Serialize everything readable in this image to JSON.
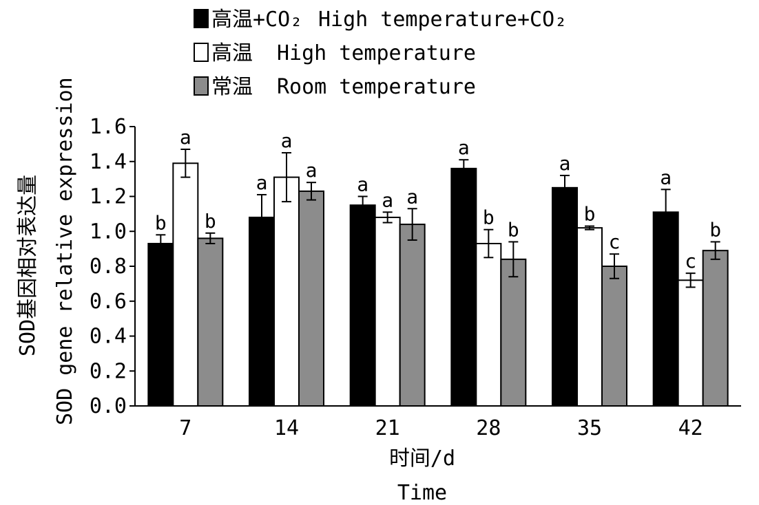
{
  "chart_data": {
    "type": "bar",
    "ylabel_cn": "SOD基因相对表达量",
    "ylabel_en": "SOD gene relative expression",
    "xlabel_cn": "时间/d",
    "xlabel_en": "Time",
    "ylim": [
      0,
      1.6
    ],
    "yticks": [
      "0.0",
      "0.2",
      "0.4",
      "0.6",
      "0.8",
      "1.0",
      "1.2",
      "1.4",
      "1.6"
    ],
    "categories": [
      "7",
      "14",
      "21",
      "28",
      "35",
      "42"
    ],
    "legend": [
      {
        "cn": "高温+CO₂",
        "en": "High temperature+CO₂"
      },
      {
        "cn": "高温",
        "en": "High temperature"
      },
      {
        "cn": "常温",
        "en": "Room temperature"
      }
    ],
    "series": [
      {
        "color": "#000000",
        "values": [
          0.93,
          1.08,
          1.15,
          1.36,
          1.25,
          1.11
        ],
        "errors": [
          0.05,
          0.13,
          0.05,
          0.05,
          0.07,
          0.13
        ],
        "labels": [
          "b",
          "a",
          "a",
          "a",
          "a",
          "a"
        ]
      },
      {
        "color": "#ffffff",
        "values": [
          1.39,
          1.31,
          1.08,
          0.93,
          1.02,
          0.72
        ],
        "errors": [
          0.08,
          0.14,
          0.03,
          0.08,
          0.01,
          0.04
        ],
        "labels": [
          "a",
          "a",
          "a",
          "b",
          "b",
          "c"
        ]
      },
      {
        "color": "#8c8c8c",
        "values": [
          0.96,
          1.23,
          1.04,
          0.84,
          0.8,
          0.89
        ],
        "errors": [
          0.03,
          0.05,
          0.09,
          0.1,
          0.07,
          0.05
        ],
        "labels": [
          "b",
          "a",
          "a",
          "b",
          "c",
          "b"
        ]
      }
    ]
  }
}
